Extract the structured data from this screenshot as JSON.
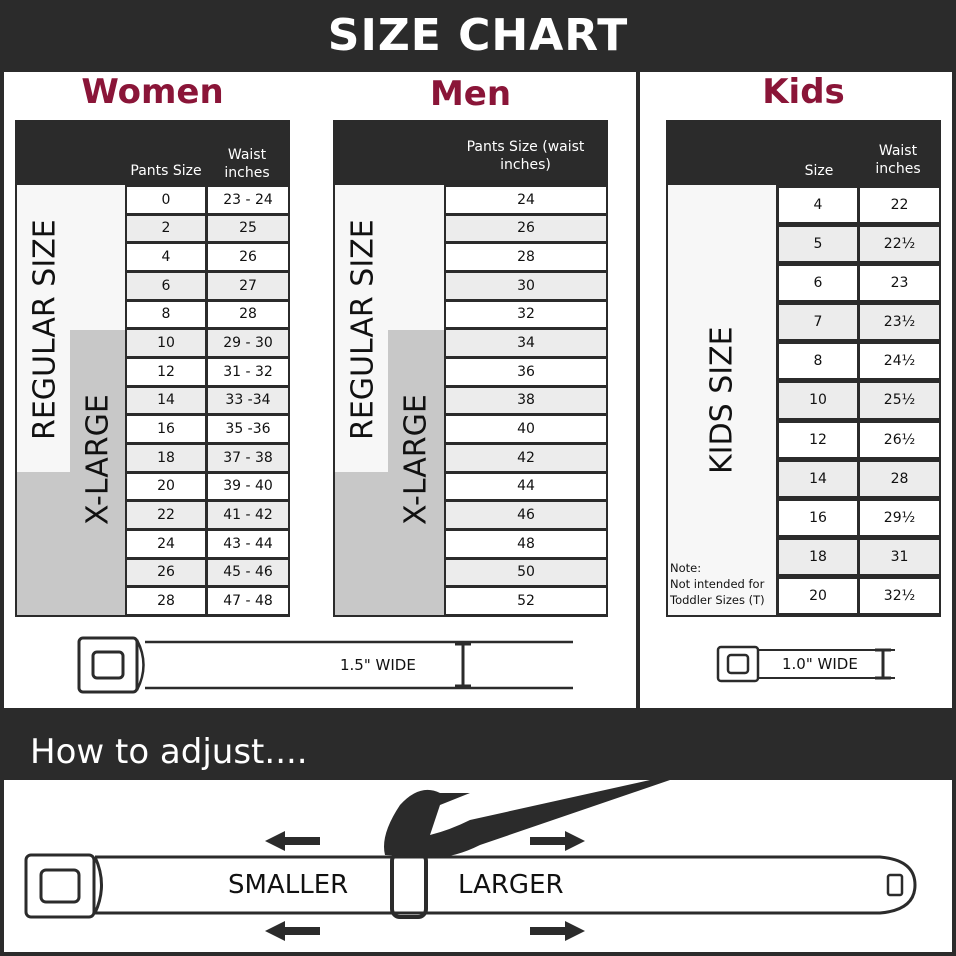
{
  "title": "SIZE CHART",
  "colors": {
    "accent": "#8a1538",
    "dark": "#2b2b2b",
    "xlarge": "#c8c8c8"
  },
  "women": {
    "heading": "Women",
    "col1": "Pants Size",
    "col2": "Waist inches",
    "regular_label": "REGULAR SIZE",
    "xlarge_label": "X-LARGE",
    "rows": [
      [
        "0",
        "23 - 24"
      ],
      [
        "2",
        "25"
      ],
      [
        "4",
        "26"
      ],
      [
        "6",
        "27"
      ],
      [
        "8",
        "28"
      ],
      [
        "10",
        "29 - 30"
      ],
      [
        "12",
        "31 - 32"
      ],
      [
        "14",
        "33 -34"
      ],
      [
        "16",
        "35 -36"
      ],
      [
        "18",
        "37 - 38"
      ],
      [
        "20",
        "39 - 40"
      ],
      [
        "22",
        "41 - 42"
      ],
      [
        "24",
        "43 - 44"
      ],
      [
        "26",
        "45 - 46"
      ],
      [
        "28",
        "47 - 48"
      ]
    ]
  },
  "men": {
    "heading": "Men",
    "col1": "Pants Size (waist inches)",
    "regular_label": "REGULAR SIZE",
    "xlarge_label": "X-LARGE",
    "rows": [
      "24",
      "26",
      "28",
      "30",
      "32",
      "34",
      "36",
      "38",
      "40",
      "42",
      "44",
      "46",
      "48",
      "50",
      "52"
    ]
  },
  "kids": {
    "heading": "Kids",
    "col1": "Size",
    "col2": "Waist inches",
    "label": "KIDS SIZE",
    "note_title": "Note:",
    "note": "Not intended for Toddler Sizes (T)",
    "rows": [
      [
        "4",
        "22"
      ],
      [
        "5",
        "22½"
      ],
      [
        "6",
        "23"
      ],
      [
        "7",
        "23½"
      ],
      [
        "8",
        "24½"
      ],
      [
        "10",
        "25½"
      ],
      [
        "12",
        "26½"
      ],
      [
        "14",
        "28"
      ],
      [
        "16",
        "29½"
      ],
      [
        "18",
        "31"
      ],
      [
        "20",
        "32½"
      ]
    ]
  },
  "adult_belt_width": "1.5\" WIDE",
  "kids_belt_width": "1.0\" WIDE",
  "adjust": {
    "heading": "How to adjust....",
    "smaller": "SMALLER",
    "larger": "LARGER"
  }
}
